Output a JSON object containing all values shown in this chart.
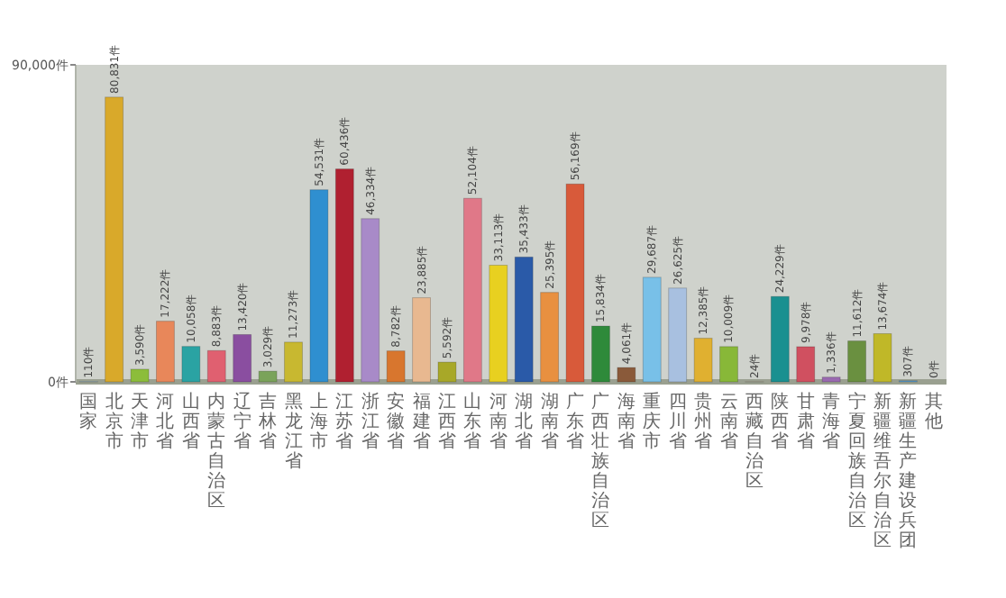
{
  "chart_data": {
    "type": "bar",
    "categories": [
      "国家",
      "北京市",
      "天津市",
      "河北省",
      "山西省",
      "内蒙古自治区",
      "辽宁省",
      "吉林省",
      "黑龙江省",
      "上海市",
      "江苏省",
      "浙江省",
      "安徽省",
      "福建省",
      "江西省",
      "山东省",
      "河南省",
      "湖北省",
      "湖南省",
      "广东省",
      "广西壮族自治区",
      "海南省",
      "重庆市",
      "四川省",
      "贵州省",
      "云南省",
      "西藏自治区",
      "陕西省",
      "甘肃省",
      "青海省",
      "宁夏回族自治区",
      "新疆维吾尔自治区",
      "新疆生产建设兵团",
      "其他"
    ],
    "values": [
      110,
      80831,
      3590,
      17222,
      10058,
      8883,
      13420,
      3029,
      11273,
      54531,
      60436,
      46334,
      8782,
      23885,
      5592,
      52104,
      33113,
      35433,
      25395,
      56169,
      15834,
      4061,
      29687,
      26625,
      12385,
      10009,
      24,
      24229,
      9978,
      1336,
      11612,
      13674,
      307,
      0
    ],
    "value_labels": [
      "110件",
      "80,831件",
      "3,590件",
      "17,222件",
      "10,058件",
      "8,883件",
      "13,420件",
      "3,029件",
      "11,273件",
      "54,531件",
      "60,436件",
      "46,334件",
      "8,782件",
      "23,885件",
      "5,592件",
      "52,104件",
      "33,113件",
      "35,433件",
      "25,395件",
      "56,169件",
      "15,834件",
      "4,061件",
      "29,687件",
      "26,625件",
      "12,385件",
      "10,009件",
      "24件",
      "24,229件",
      "9,978件",
      "1,336件",
      "11,612件",
      "13,674件",
      "307件",
      "0件"
    ],
    "colors": [
      "#a8cbe6",
      "#d9a92a",
      "#8cbd3a",
      "#e8875a",
      "#2aa3a3",
      "#e06070",
      "#8a4ea0",
      "#7aa35a",
      "#c8b830",
      "#2f8fd0",
      "#b02030",
      "#a88ac8",
      "#d8762e",
      "#e8b890",
      "#a8a828",
      "#e07888",
      "#e8d020",
      "#2a5aa8",
      "#e89040",
      "#d85a3a",
      "#2e8a3a",
      "#8a5a3a",
      "#78c0e8",
      "#a8c0e0",
      "#e0b030",
      "#88b838",
      "#f0c0a0",
      "#1a9090",
      "#d05060",
      "#9a6ab0",
      "#6a9040",
      "#c0b828",
      "#5aa0d8",
      "#d04050"
    ],
    "ylim": [
      0,
      90000
    ],
    "yticks": [
      {
        "value": 0,
        "label": "0件"
      },
      {
        "value": 90000,
        "label": "90,000件"
      }
    ]
  }
}
